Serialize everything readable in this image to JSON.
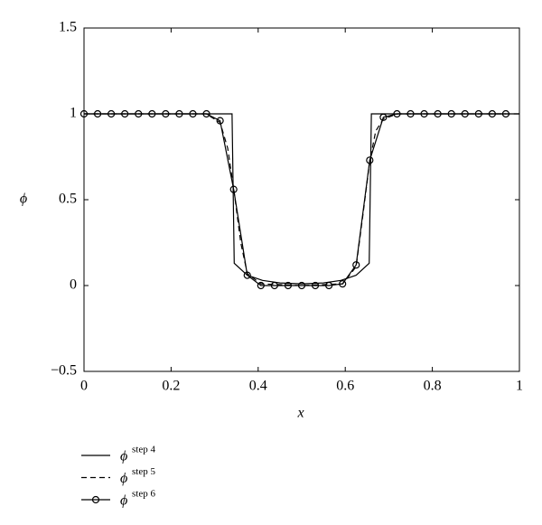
{
  "chart_data": {
    "type": "line",
    "xlabel": "x",
    "ylabel": "ϕ",
    "legend_symbol": "ϕ",
    "xlim": [
      0,
      1
    ],
    "ylim": [
      -0.5,
      1.5
    ],
    "xticks": [
      0,
      0.2,
      0.4,
      0.6,
      0.8,
      1
    ],
    "yticks": [
      {
        "value": -0.5,
        "label": "−0.5"
      },
      0,
      0.5,
      1,
      1.5
    ],
    "legend": "bottom-left",
    "series": [
      {
        "name": "step 4",
        "color": "#000000",
        "dash": "solid",
        "marker": "none",
        "x": [
          0,
          0.34,
          0.345,
          0.375,
          0.41,
          0.45,
          0.5,
          0.55,
          0.59,
          0.625,
          0.655,
          0.66,
          1
        ],
        "values": [
          1,
          1,
          0.13,
          0.06,
          0.03,
          0.015,
          0.01,
          0.015,
          0.03,
          0.06,
          0.13,
          1,
          1
        ]
      },
      {
        "name": "step 5",
        "color": "#000000",
        "dash": "dashed",
        "marker": "none",
        "x": [
          0,
          0.28,
          0.3125,
          0.33,
          0.344,
          0.36,
          0.375,
          0.406,
          0.5,
          0.594,
          0.625,
          0.64,
          0.656,
          0.67,
          0.6875,
          0.72,
          1
        ],
        "values": [
          1,
          1,
          0.95,
          0.8,
          0.56,
          0.25,
          0.07,
          0.01,
          0,
          0.01,
          0.11,
          0.4,
          0.72,
          0.9,
          0.97,
          1,
          1
        ]
      },
      {
        "name": "step 6",
        "color": "#000000",
        "dash": "solid",
        "marker": "circle",
        "x": [
          0,
          0.03125,
          0.0625,
          0.09375,
          0.125,
          0.15625,
          0.1875,
          0.21875,
          0.25,
          0.28125,
          0.3125,
          0.34375,
          0.375,
          0.40625,
          0.4375,
          0.46875,
          0.5,
          0.53125,
          0.5625,
          0.59375,
          0.625,
          0.65625,
          0.6875,
          0.71875,
          0.75,
          0.78125,
          0.8125,
          0.84375,
          0.875,
          0.90625,
          0.9375,
          0.96875
        ],
        "values": [
          1,
          1,
          1,
          1,
          1,
          1,
          1,
          1,
          1,
          1,
          0.96,
          0.56,
          0.06,
          0,
          0,
          0,
          0,
          0,
          0,
          0.01,
          0.12,
          0.73,
          0.98,
          1,
          1,
          1,
          1,
          1,
          1,
          1,
          1,
          1
        ]
      }
    ]
  }
}
